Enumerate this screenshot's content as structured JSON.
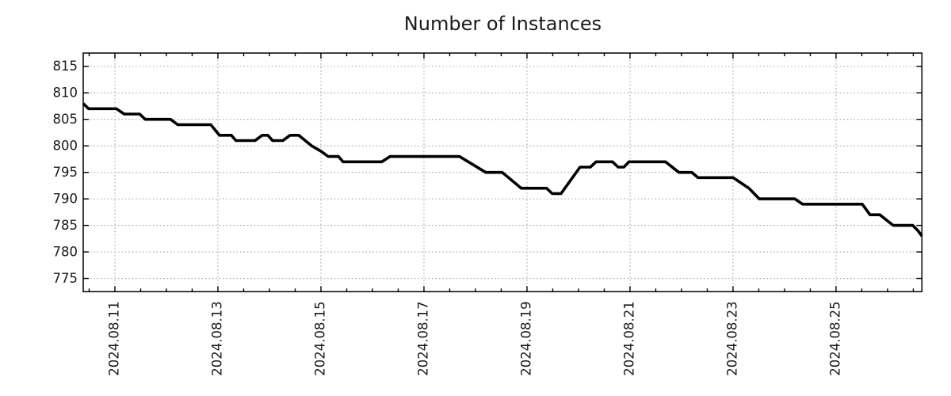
{
  "figure": {
    "title": "Number of Instances"
  },
  "chart_data": {
    "type": "line",
    "title": "Number of Instances",
    "xlabel": "",
    "ylabel": "",
    "legend": "none",
    "grid": "dotted gray at labeled ticks",
    "x_unit": "days, where 1.0 = 2024-08-11 00:00",
    "xlim": [
      0.385,
      16.667
    ],
    "ylim": [
      772.5,
      817.5
    ],
    "x_major_ticks": [
      {
        "x": 1,
        "label": "2024.08.11"
      },
      {
        "x": 3,
        "label": "2024.08.13"
      },
      {
        "x": 5,
        "label": "2024.08.15"
      },
      {
        "x": 7,
        "label": "2024.08.17"
      },
      {
        "x": 9,
        "label": "2024.08.19"
      },
      {
        "x": 11,
        "label": "2024.08.21"
      },
      {
        "x": 13,
        "label": "2024.08.23"
      },
      {
        "x": 15,
        "label": "2024.08.25"
      }
    ],
    "x_minor_tick_step": 0.5,
    "y_ticks": [
      775,
      780,
      785,
      790,
      795,
      800,
      805,
      810,
      815
    ],
    "series": [
      {
        "name": "instances",
        "color": "#000000",
        "points": [
          [
            0.385,
            808
          ],
          [
            0.49,
            807
          ],
          [
            1.03,
            807
          ],
          [
            1.18,
            806
          ],
          [
            1.48,
            806
          ],
          [
            1.59,
            805
          ],
          [
            2.08,
            805
          ],
          [
            2.22,
            804
          ],
          [
            2.86,
            804
          ],
          [
            3.03,
            802
          ],
          [
            3.26,
            802
          ],
          [
            3.35,
            801
          ],
          [
            3.72,
            801
          ],
          [
            3.86,
            802
          ],
          [
            3.97,
            802
          ],
          [
            4.06,
            801
          ],
          [
            4.26,
            801
          ],
          [
            4.4,
            802
          ],
          [
            4.57,
            802
          ],
          [
            4.82,
            800
          ],
          [
            5.0,
            799
          ],
          [
            5.14,
            798
          ],
          [
            5.34,
            798
          ],
          [
            5.43,
            797
          ],
          [
            6.18,
            797
          ],
          [
            6.34,
            798
          ],
          [
            7.69,
            798
          ],
          [
            8.2,
            795
          ],
          [
            8.52,
            795
          ],
          [
            8.89,
            792
          ],
          [
            9.38,
            792
          ],
          [
            9.49,
            791
          ],
          [
            9.66,
            791
          ],
          [
            10.03,
            796
          ],
          [
            10.23,
            796
          ],
          [
            10.34,
            797
          ],
          [
            10.66,
            797
          ],
          [
            10.77,
            796
          ],
          [
            10.88,
            796
          ],
          [
            10.98,
            797
          ],
          [
            11.69,
            797
          ],
          [
            11.95,
            795
          ],
          [
            12.2,
            795
          ],
          [
            12.32,
            794
          ],
          [
            13.0,
            794
          ],
          [
            13.31,
            792
          ],
          [
            13.51,
            790
          ],
          [
            14.2,
            790
          ],
          [
            14.35,
            789
          ],
          [
            15.51,
            789
          ],
          [
            15.66,
            787
          ],
          [
            15.85,
            787
          ],
          [
            16.11,
            785
          ],
          [
            16.49,
            785
          ],
          [
            16.59,
            784
          ],
          [
            16.667,
            783
          ]
        ]
      }
    ]
  },
  "style": {
    "background": "#ffffff",
    "text_color": "#1a1a1a",
    "grid_color": "#a8a8a8",
    "axis_color": "#000000",
    "line_color": "#000000"
  }
}
